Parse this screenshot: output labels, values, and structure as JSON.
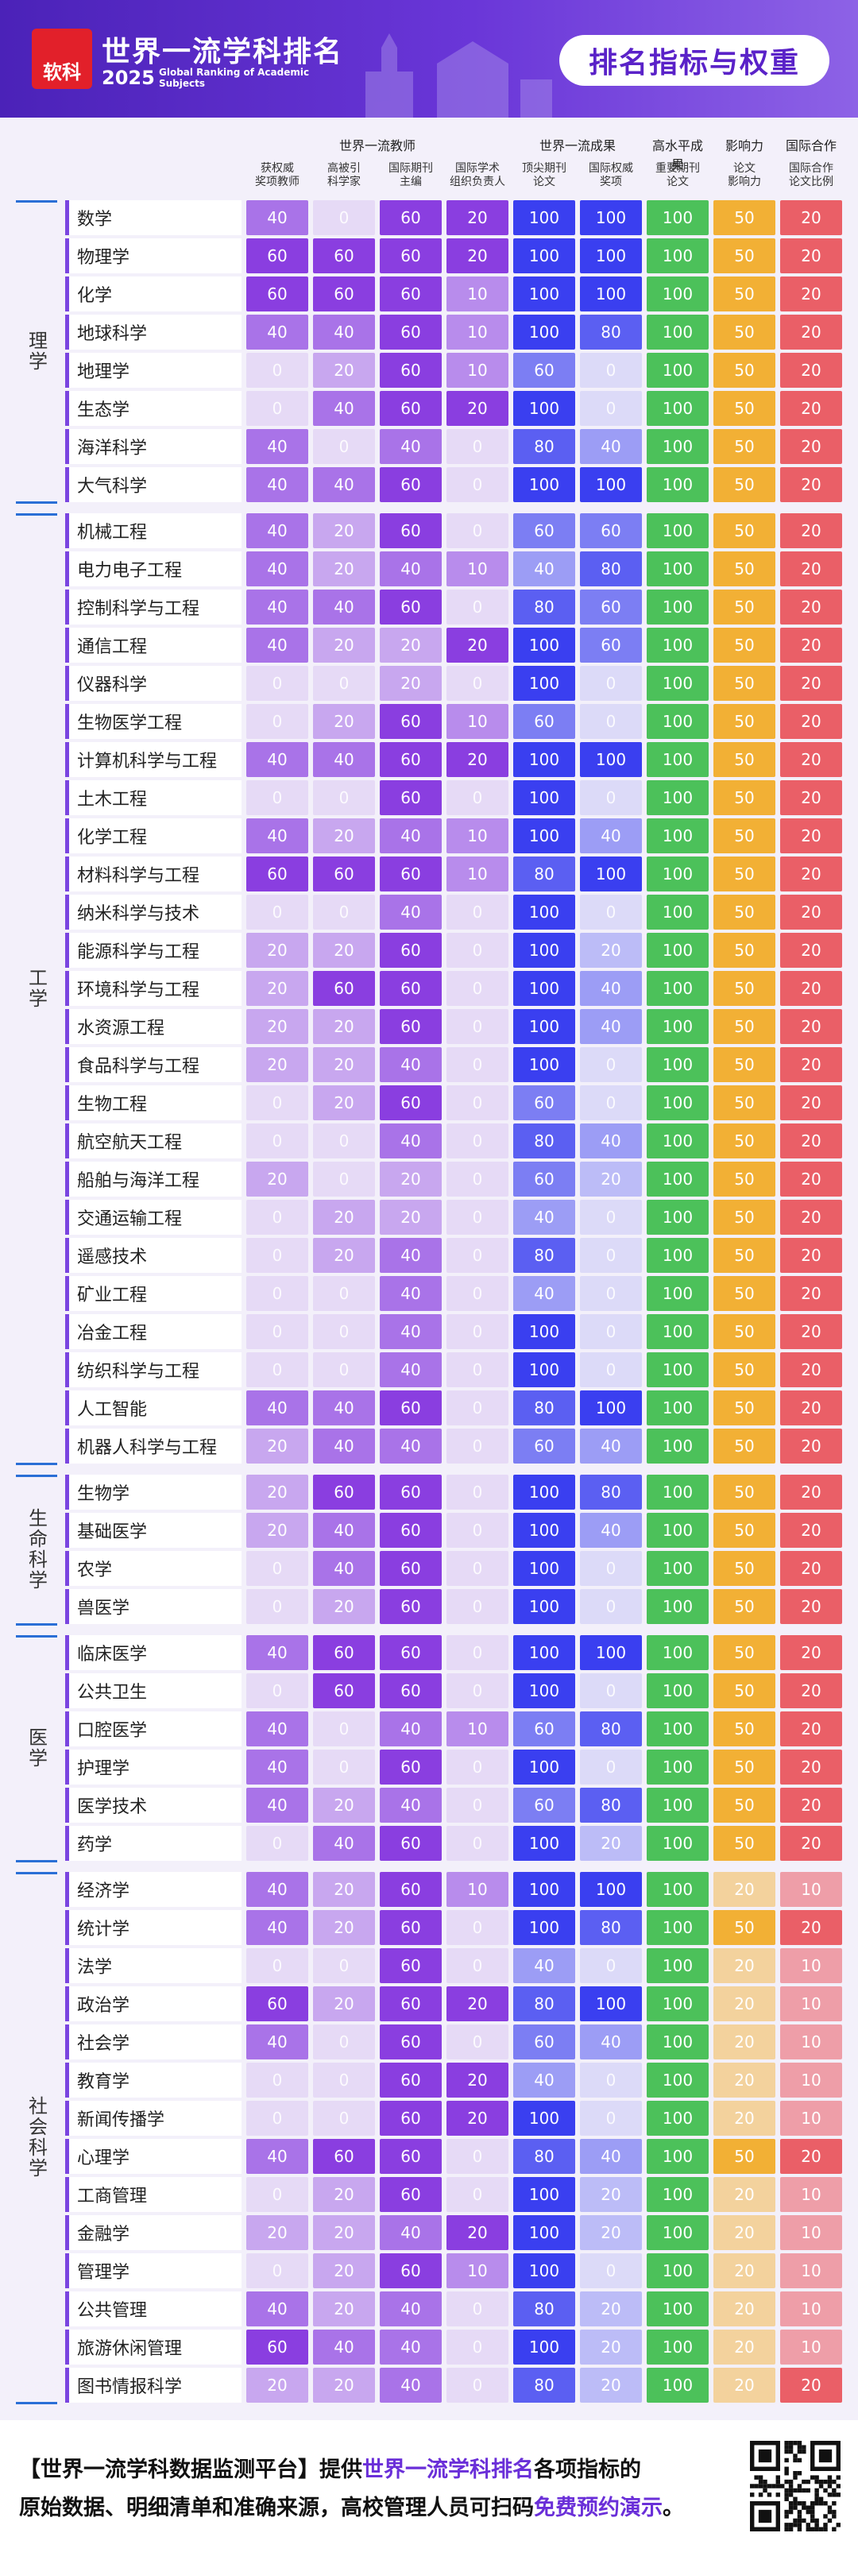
{
  "header": {
    "logo": "软科",
    "title": "世界一流学科排名",
    "year": "2025",
    "subtitle": "Global Ranking of Academic\nSubjects",
    "badge": "排名指标与权重"
  },
  "table": {
    "groups": [
      {
        "label": "世界一流教师",
        "span": 4
      },
      {
        "label": "世界一流成果",
        "span": 2
      },
      {
        "label": "高水平成果",
        "span": 1
      },
      {
        "label": "影响力",
        "span": 1
      },
      {
        "label": "国际合作",
        "span": 1
      }
    ],
    "columns": [
      {
        "label": "获权威\n奖项教师",
        "color": "#8a3ee0"
      },
      {
        "label": "高被引\n科学家",
        "color": "#8a3ee0"
      },
      {
        "label": "国际期刊\n主编",
        "color": "#8a3ee0"
      },
      {
        "label": "国际学术\n组织负责人",
        "color": "#8a3ee0"
      },
      {
        "label": "顶尖期刊\n论文",
        "color": "#3a3ff0"
      },
      {
        "label": "国际权威\n奖项",
        "color": "#3a3ff0"
      },
      {
        "label": "重要期刊\n论文",
        "color": "#4cc15a"
      },
      {
        "label": "论文\n影响力",
        "color": "#f2b035"
      },
      {
        "label": "国际合作\n论文比例",
        "color": "#ea5f67"
      }
    ],
    "sections": [
      {
        "label": "理学",
        "rows": [
          {
            "name": "数学",
            "values": [
              40,
              0,
              60,
              20,
              100,
              100,
              100,
              50,
              20
            ]
          },
          {
            "name": "物理学",
            "values": [
              60,
              60,
              60,
              20,
              100,
              100,
              100,
              50,
              20
            ]
          },
          {
            "name": "化学",
            "values": [
              60,
              60,
              60,
              10,
              100,
              100,
              100,
              50,
              20
            ]
          },
          {
            "name": "地球科学",
            "values": [
              40,
              40,
              60,
              10,
              100,
              80,
              100,
              50,
              20
            ]
          },
          {
            "name": "地理学",
            "values": [
              0,
              20,
              60,
              10,
              60,
              0,
              100,
              50,
              20
            ]
          },
          {
            "name": "生态学",
            "values": [
              0,
              40,
              60,
              20,
              100,
              0,
              100,
              50,
              20
            ]
          },
          {
            "name": "海洋科学",
            "values": [
              40,
              0,
              40,
              0,
              80,
              40,
              100,
              50,
              20
            ]
          },
          {
            "name": "大气科学",
            "values": [
              40,
              40,
              60,
              0,
              100,
              100,
              100,
              50,
              20
            ]
          }
        ]
      },
      {
        "label": "工学",
        "rows": [
          {
            "name": "机械工程",
            "values": [
              40,
              20,
              60,
              0,
              60,
              60,
              100,
              50,
              20
            ]
          },
          {
            "name": "电力电子工程",
            "values": [
              40,
              20,
              40,
              10,
              40,
              80,
              100,
              50,
              20
            ]
          },
          {
            "name": "控制科学与工程",
            "values": [
              40,
              40,
              60,
              0,
              80,
              60,
              100,
              50,
              20
            ]
          },
          {
            "name": "通信工程",
            "values": [
              40,
              20,
              20,
              20,
              100,
              60,
              100,
              50,
              20
            ]
          },
          {
            "name": "仪器科学",
            "values": [
              0,
              0,
              20,
              0,
              100,
              0,
              100,
              50,
              20
            ]
          },
          {
            "name": "生物医学工程",
            "values": [
              0,
              20,
              60,
              10,
              60,
              0,
              100,
              50,
              20
            ]
          },
          {
            "name": "计算机科学与工程",
            "values": [
              40,
              40,
              60,
              20,
              100,
              100,
              100,
              50,
              20
            ]
          },
          {
            "name": "土木工程",
            "values": [
              0,
              0,
              60,
              0,
              100,
              0,
              100,
              50,
              20
            ]
          },
          {
            "name": "化学工程",
            "values": [
              40,
              20,
              40,
              10,
              100,
              40,
              100,
              50,
              20
            ]
          },
          {
            "name": "材料科学与工程",
            "values": [
              60,
              60,
              60,
              10,
              80,
              100,
              100,
              50,
              20
            ]
          },
          {
            "name": "纳米科学与技术",
            "values": [
              0,
              0,
              40,
              0,
              100,
              0,
              100,
              50,
              20
            ]
          },
          {
            "name": "能源科学与工程",
            "values": [
              20,
              20,
              60,
              0,
              100,
              20,
              100,
              50,
              20
            ]
          },
          {
            "name": "环境科学与工程",
            "values": [
              20,
              60,
              60,
              0,
              100,
              40,
              100,
              50,
              20
            ]
          },
          {
            "name": "水资源工程",
            "values": [
              20,
              20,
              60,
              0,
              100,
              40,
              100,
              50,
              20
            ]
          },
          {
            "name": "食品科学与工程",
            "values": [
              20,
              20,
              40,
              0,
              100,
              0,
              100,
              50,
              20
            ]
          },
          {
            "name": "生物工程",
            "values": [
              0,
              20,
              60,
              0,
              60,
              0,
              100,
              50,
              20
            ]
          },
          {
            "name": "航空航天工程",
            "values": [
              0,
              0,
              40,
              0,
              80,
              40,
              100,
              50,
              20
            ]
          },
          {
            "name": "船舶与海洋工程",
            "values": [
              20,
              0,
              20,
              0,
              60,
              20,
              100,
              50,
              20
            ]
          },
          {
            "name": "交通运输工程",
            "values": [
              0,
              20,
              20,
              0,
              40,
              0,
              100,
              50,
              20
            ]
          },
          {
            "name": "遥感技术",
            "values": [
              0,
              20,
              40,
              0,
              80,
              0,
              100,
              50,
              20
            ]
          },
          {
            "name": "矿业工程",
            "values": [
              0,
              0,
              40,
              0,
              40,
              0,
              100,
              50,
              20
            ]
          },
          {
            "name": "冶金工程",
            "values": [
              0,
              0,
              40,
              0,
              100,
              0,
              100,
              50,
              20
            ]
          },
          {
            "name": "纺织科学与工程",
            "values": [
              0,
              0,
              40,
              0,
              100,
              0,
              100,
              50,
              20
            ]
          },
          {
            "name": "人工智能",
            "values": [
              40,
              40,
              60,
              0,
              80,
              100,
              100,
              50,
              20
            ]
          },
          {
            "name": "机器人科学与工程",
            "values": [
              20,
              40,
              40,
              0,
              60,
              40,
              100,
              50,
              20
            ]
          }
        ]
      },
      {
        "label": "生命科学",
        "rows": [
          {
            "name": "生物学",
            "values": [
              20,
              60,
              60,
              0,
              100,
              80,
              100,
              50,
              20
            ]
          },
          {
            "name": "基础医学",
            "values": [
              20,
              40,
              60,
              0,
              100,
              40,
              100,
              50,
              20
            ]
          },
          {
            "name": "农学",
            "values": [
              0,
              40,
              60,
              0,
              100,
              0,
              100,
              50,
              20
            ]
          },
          {
            "name": "兽医学",
            "values": [
              0,
              20,
              60,
              0,
              100,
              0,
              100,
              50,
              20
            ]
          }
        ]
      },
      {
        "label": "医学",
        "rows": [
          {
            "name": "临床医学",
            "values": [
              40,
              60,
              60,
              0,
              100,
              100,
              100,
              50,
              20
            ]
          },
          {
            "name": "公共卫生",
            "values": [
              0,
              60,
              60,
              0,
              100,
              0,
              100,
              50,
              20
            ]
          },
          {
            "name": "口腔医学",
            "values": [
              40,
              0,
              40,
              10,
              60,
              80,
              100,
              50,
              20
            ]
          },
          {
            "name": "护理学",
            "values": [
              40,
              0,
              60,
              0,
              100,
              0,
              100,
              50,
              20
            ]
          },
          {
            "name": "医学技术",
            "values": [
              40,
              20,
              40,
              0,
              60,
              80,
              100,
              50,
              20
            ]
          },
          {
            "name": "药学",
            "values": [
              0,
              40,
              60,
              0,
              100,
              20,
              100,
              50,
              20
            ]
          }
        ]
      },
      {
        "label": "社会科学",
        "rows": [
          {
            "name": "经济学",
            "values": [
              40,
              20,
              60,
              10,
              100,
              100,
              100,
              20,
              10
            ]
          },
          {
            "name": "统计学",
            "values": [
              40,
              20,
              60,
              0,
              100,
              80,
              100,
              50,
              20
            ]
          },
          {
            "name": "法学",
            "values": [
              0,
              0,
              60,
              0,
              40,
              0,
              100,
              20,
              10
            ]
          },
          {
            "name": "政治学",
            "values": [
              60,
              20,
              60,
              20,
              80,
              100,
              100,
              20,
              10
            ]
          },
          {
            "name": "社会学",
            "values": [
              40,
              0,
              60,
              0,
              60,
              40,
              100,
              20,
              10
            ]
          },
          {
            "name": "教育学",
            "values": [
              0,
              0,
              60,
              20,
              40,
              0,
              100,
              20,
              10
            ]
          },
          {
            "name": "新闻传播学",
            "values": [
              0,
              0,
              60,
              20,
              100,
              0,
              100,
              20,
              10
            ]
          },
          {
            "name": "心理学",
            "values": [
              40,
              60,
              60,
              0,
              80,
              40,
              100,
              50,
              20
            ]
          },
          {
            "name": "工商管理",
            "values": [
              0,
              20,
              60,
              0,
              100,
              20,
              100,
              20,
              10
            ]
          },
          {
            "name": "金融学",
            "values": [
              20,
              20,
              40,
              20,
              100,
              20,
              100,
              20,
              10
            ]
          },
          {
            "name": "管理学",
            "values": [
              0,
              20,
              60,
              10,
              100,
              0,
              100,
              20,
              10
            ]
          },
          {
            "name": "公共管理",
            "values": [
              40,
              20,
              40,
              0,
              80,
              20,
              100,
              20,
              10
            ]
          },
          {
            "name": "旅游休闲管理",
            "values": [
              60,
              40,
              40,
              0,
              100,
              20,
              100,
              20,
              10
            ]
          },
          {
            "name": "图书情报科学",
            "values": [
              20,
              20,
              40,
              0,
              80,
              20,
              100,
              20,
              20
            ]
          }
        ]
      }
    ]
  },
  "footer": {
    "lines": [
      [
        {
          "text": "【世界一流学科数据监测平台】提供",
          "emphasis": false
        },
        {
          "text": "世界一流学科排名",
          "emphasis": true
        },
        {
          "text": "各项指标的",
          "emphasis": false
        }
      ],
      [
        {
          "text": "原始数据、明细清单和准确来源，高校管理人员可扫码",
          "emphasis": false
        },
        {
          "text": "免费预约演示",
          "emphasis": true
        },
        {
          "text": "。",
          "emphasis": false
        }
      ]
    ]
  }
}
